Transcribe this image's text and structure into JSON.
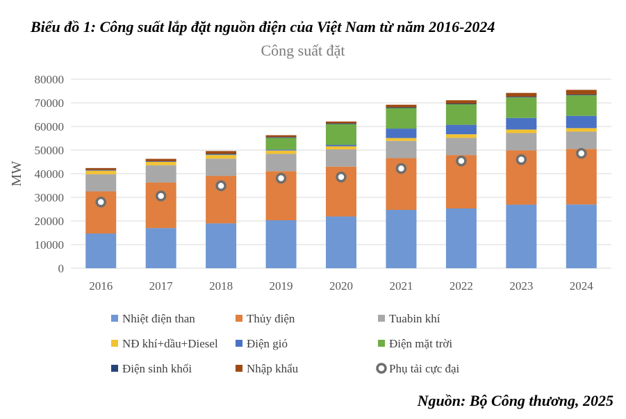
{
  "caption": "Biểu đồ 1: Công suất lắp đặt nguồn điện của Việt Nam từ năm 2016-2024",
  "source": "Nguồn: Bộ Công thương, 2025",
  "chart_data": {
    "type": "bar",
    "stacked": true,
    "title": "Công suất đặt",
    "ylabel": "MW",
    "xlabel": "",
    "ylim": [
      0,
      80000
    ],
    "yticks": [
      0,
      10000,
      20000,
      30000,
      40000,
      50000,
      60000,
      70000,
      80000
    ],
    "grid": true,
    "legend_position": "bottom",
    "categories": [
      "2016",
      "2017",
      "2018",
      "2019",
      "2020",
      "2021",
      "2022",
      "2023",
      "2024"
    ],
    "series": [
      {
        "name": "Nhiệt điện than",
        "color": "#6f97d3",
        "values": [
          14700,
          17000,
          19000,
          20300,
          21900,
          24700,
          25300,
          26900,
          27000
        ]
      },
      {
        "name": "Thủy điện",
        "color": "#e07f3f",
        "values": [
          17800,
          19300,
          20100,
          20800,
          21100,
          21900,
          22600,
          23000,
          23500
        ]
      },
      {
        "name": "Tuabin khí",
        "color": "#a8a8a8",
        "values": [
          7300,
          7300,
          7300,
          7300,
          7300,
          7300,
          7300,
          7300,
          7300
        ]
      },
      {
        "name": "NĐ khí+dầu+Diesel",
        "color": "#f2c232",
        "values": [
          1500,
          1400,
          1500,
          1400,
          1300,
          1200,
          1500,
          1500,
          1500
        ]
      },
      {
        "name": "Điện gió",
        "color": "#4a72c4",
        "values": [
          200,
          200,
          200,
          400,
          600,
          4000,
          4000,
          4900,
          5200
        ]
      },
      {
        "name": "Điện mặt trời",
        "color": "#70ad47",
        "values": [
          0,
          0,
          100,
          5000,
          8800,
          8700,
          8700,
          8700,
          8700
        ]
      },
      {
        "name": "Điện sinh khối",
        "color": "#264478",
        "values": [
          100,
          100,
          200,
          300,
          300,
          300,
          300,
          300,
          300
        ]
      },
      {
        "name": "Nhập khẩu",
        "color": "#9e4a14",
        "values": [
          800,
          1000,
          1200,
          800,
          800,
          1100,
          1400,
          1600,
          2000
        ]
      }
    ],
    "line_series": {
      "name": "Phụ tải cực đại",
      "marker": "ring",
      "color": "#6e6e6e",
      "values": [
        28000,
        30600,
        34900,
        38100,
        38600,
        42200,
        45400,
        46000,
        48600
      ]
    }
  }
}
